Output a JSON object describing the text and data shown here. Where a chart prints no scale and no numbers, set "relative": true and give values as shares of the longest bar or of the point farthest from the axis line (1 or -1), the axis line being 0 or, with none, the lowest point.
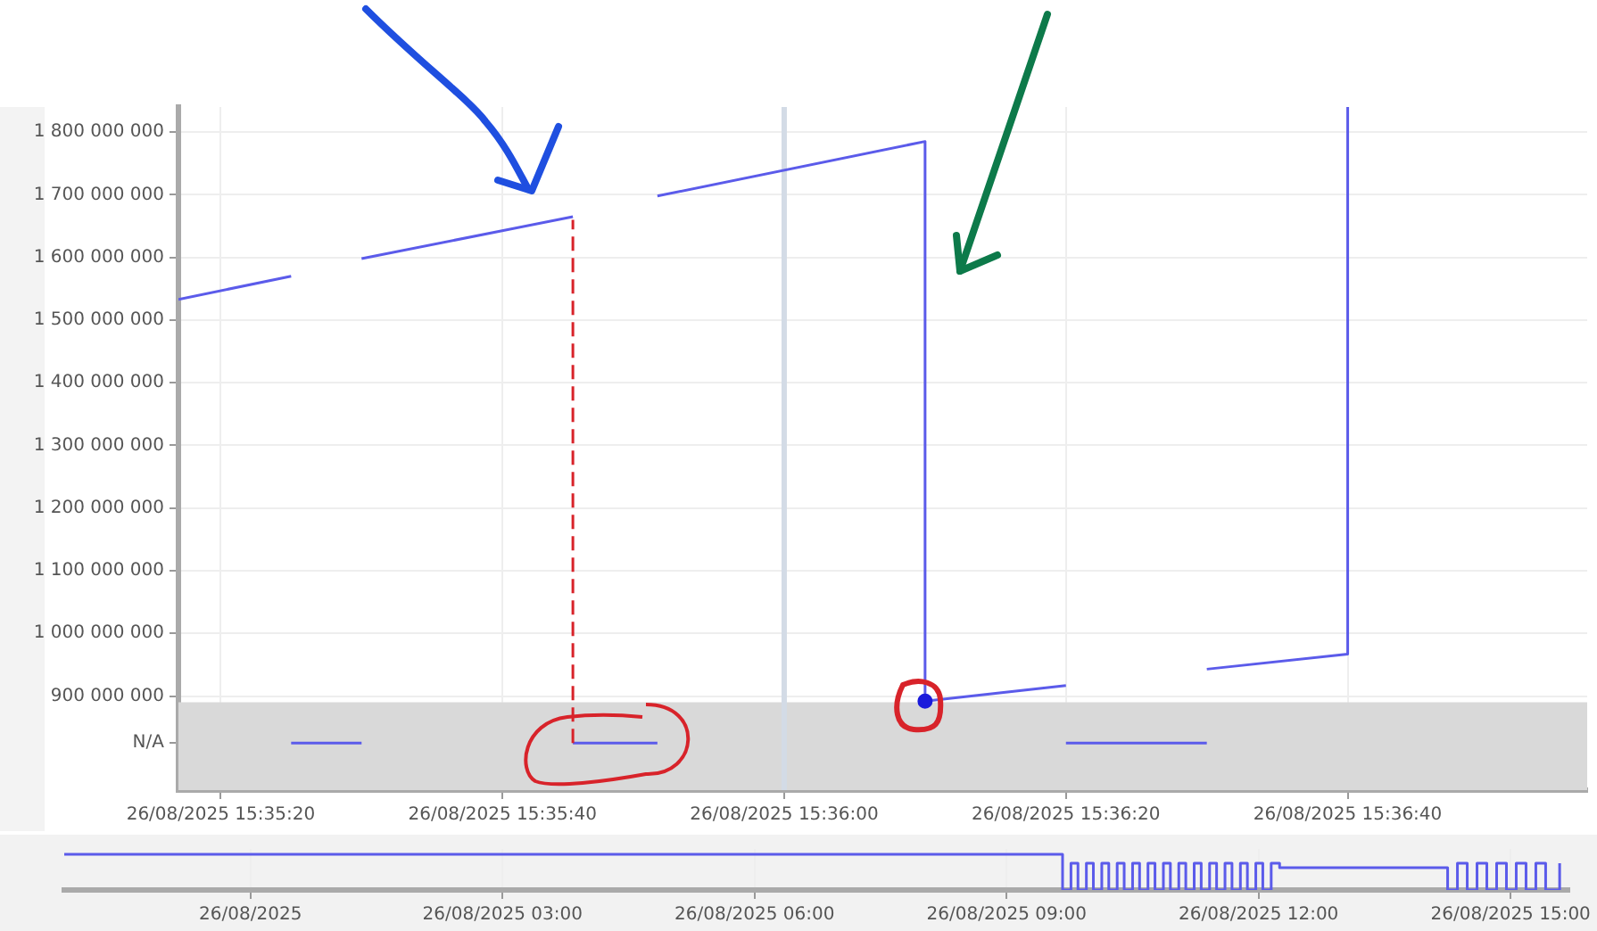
{
  "chart_data": [
    {
      "type": "line",
      "marker": "none",
      "grid": true,
      "legend": false,
      "xlim": [
        "2025-08-26T15:35:17",
        "2025-08-26T15:36:57"
      ],
      "xticks": [
        {
          "value": "2025-08-26T15:35:20",
          "label": "26/08/2025 15:35:20"
        },
        {
          "value": "2025-08-26T15:35:40",
          "label": "26/08/2025 15:35:40"
        },
        {
          "value": "2025-08-26T15:36:00",
          "label": "26/08/2025 15:36:00"
        },
        {
          "value": "2025-08-26T15:36:20",
          "label": "26/08/2025 15:36:20"
        },
        {
          "value": "2025-08-26T15:36:40",
          "label": "26/08/2025 15:36:40"
        }
      ],
      "ylim": [
        750000000,
        1840000000
      ],
      "yticks": [
        {
          "value": 825000000,
          "label": "N/A"
        },
        {
          "value": 900000000,
          "label": "900 000 000"
        },
        {
          "value": 1000000000,
          "label": "1 000 000 000"
        },
        {
          "value": 1100000000,
          "label": "1 100 000 000"
        },
        {
          "value": 1200000000,
          "label": "1 200 000 000"
        },
        {
          "value": 1300000000,
          "label": "1 300 000 000"
        },
        {
          "value": 1400000000,
          "label": "1 400 000 000"
        },
        {
          "value": 1500000000,
          "label": "1 500 000 000"
        },
        {
          "value": 1600000000,
          "label": "1 600 000 000"
        },
        {
          "value": 1700000000,
          "label": "1 700 000 000"
        },
        {
          "value": 1800000000,
          "label": "1 800 000 000"
        }
      ],
      "bands": [
        {
          "axis": "y",
          "from": 750000000,
          "to": 890000000,
          "color": "#d9d9d9"
        }
      ],
      "ref_lines": [
        {
          "axis": "x",
          "value": "2025-08-26T15:36:00",
          "color": "#d3dbe6"
        }
      ],
      "series": [
        {
          "color": "#5b5bea",
          "x": [
            "2025-08-26T15:35:17",
            "2025-08-26T15:35:25",
            "2025-08-26T15:35:27",
            "2025-08-26T15:35:30",
            "2025-08-26T15:35:45",
            "2025-08-26T15:35:48",
            "2025-08-26T15:35:51",
            "2025-08-26T15:36:10",
            "2025-08-26T15:36:10",
            "2025-08-26T15:36:20",
            "2025-08-26T15:36:25",
            "2025-08-26T15:36:30",
            "2025-08-26T15:36:40",
            "2025-08-26T15:36:40"
          ],
          "values": [
            1533000000,
            1570000000,
            null,
            1598000000,
            1665000000,
            null,
            1698000000,
            1785000000,
            892000000,
            917000000,
            null,
            943000000,
            967000000,
            1840000000
          ]
        },
        {
          "color": "#5b5bea",
          "x": [
            "2025-08-26T15:35:25",
            "2025-08-26T15:35:30",
            "2025-08-26T15:35:37",
            "2025-08-26T15:35:45",
            "2025-08-26T15:35:51",
            "2025-08-26T15:36:00",
            "2025-08-26T15:36:20",
            "2025-08-26T15:36:30"
          ],
          "values": [
            825000000,
            825000000,
            null,
            825000000,
            825000000,
            null,
            825000000,
            825000000
          ]
        },
        {
          "color": "#d8232a",
          "line_style": "dashed",
          "x": [
            "2025-08-26T15:35:45",
            "2025-08-26T15:35:45"
          ],
          "values": [
            825000000,
            1660000000
          ]
        },
        {
          "type": "scatter",
          "marker": "circle",
          "color": "#1a1adb",
          "x": [
            "2025-08-26T15:36:10"
          ],
          "values": [
            892000000
          ]
        }
      ]
    },
    {
      "type": "step",
      "relative": true,
      "tick_labels": "x",
      "grid": "x",
      "legend": false,
      "marker": "none",
      "xlim": [
        "2025-08-25T21:47",
        "2025-08-26T15:42"
      ],
      "xticks": [
        {
          "value": "2025-08-26T00:00",
          "label": "26/08/2025"
        },
        {
          "value": "2025-08-26T03:00",
          "label": "26/08/2025 03:00"
        },
        {
          "value": "2025-08-26T06:00",
          "label": "26/08/2025 06:00"
        },
        {
          "value": "2025-08-26T09:00",
          "label": "26/08/2025 09:00"
        },
        {
          "value": "2025-08-26T12:00",
          "label": "26/08/2025 12:00"
        },
        {
          "value": "2025-08-26T15:00",
          "label": "26/08/2025 15:00"
        }
      ],
      "series": [
        {
          "color": "#5b5bea",
          "x": [
            "2025-08-25T21:47",
            "2025-08-26T09:40",
            "2025-08-26T09:46",
            "2025-08-26T09:51",
            "2025-08-26T09:57",
            "2025-08-26T10:02",
            "2025-08-26T10:08",
            "2025-08-26T10:13",
            "2025-08-26T10:19",
            "2025-08-26T10:24",
            "2025-08-26T10:30",
            "2025-08-26T10:35",
            "2025-08-26T10:41",
            "2025-08-26T10:46",
            "2025-08-26T10:52",
            "2025-08-26T10:57",
            "2025-08-26T11:03",
            "2025-08-26T11:08",
            "2025-08-26T11:14",
            "2025-08-26T11:19",
            "2025-08-26T11:25",
            "2025-08-26T11:30",
            "2025-08-26T11:36",
            "2025-08-26T11:41",
            "2025-08-26T11:47",
            "2025-08-26T11:52",
            "2025-08-26T11:58",
            "2025-08-26T12:03",
            "2025-08-26T12:09",
            "2025-08-26T12:15",
            "2025-08-26T14:15",
            "2025-08-26T14:22",
            "2025-08-26T14:29",
            "2025-08-26T14:36",
            "2025-08-26T14:43",
            "2025-08-26T14:50",
            "2025-08-26T14:57",
            "2025-08-26T15:04",
            "2025-08-26T15:11",
            "2025-08-26T15:18",
            "2025-08-26T15:25",
            "2025-08-26T15:35"
          ],
          "values": [
            1,
            0,
            0.75,
            0,
            0.75,
            0,
            0.75,
            0,
            0.75,
            0,
            0.75,
            0,
            0.75,
            0,
            0.75,
            0,
            0.75,
            0,
            0.75,
            0,
            0.75,
            0,
            0.75,
            0,
            0.75,
            0,
            0.75,
            0,
            0.75,
            0.625,
            0,
            0.75,
            0,
            0.75,
            0,
            0.75,
            0,
            0.75,
            0,
            0.75,
            0,
            0.75
          ]
        }
      ]
    }
  ]
}
